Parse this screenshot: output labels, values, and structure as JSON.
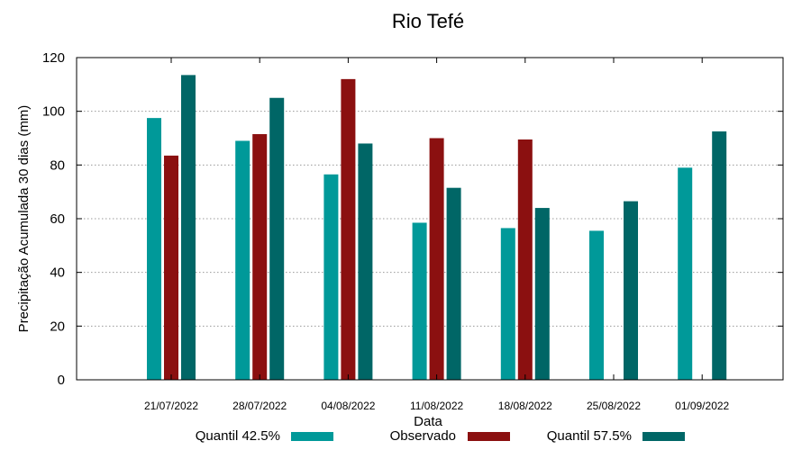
{
  "chart_data": {
    "type": "bar",
    "title": "Rio Tefé",
    "xlabel": "Data",
    "ylabel": "Precipitação Acumulada 30 dias (mm)",
    "ylim": [
      0,
      120
    ],
    "yticks": [
      0,
      20,
      40,
      60,
      80,
      100,
      120
    ],
    "grid": true,
    "legend_position": "bottom",
    "categories": [
      "21/07/2022",
      "28/07/2022",
      "04/08/2022",
      "11/08/2022",
      "18/08/2022",
      "25/08/2022",
      "01/09/2022"
    ],
    "series": [
      {
        "name": "Quantil 42.5%",
        "color": "#009999",
        "values": [
          97.5,
          89,
          76.5,
          58.5,
          56.5,
          55.5,
          79
        ]
      },
      {
        "name": "Observado",
        "color": "#8B1010",
        "values": [
          83.5,
          91.5,
          112,
          90,
          89.5,
          null,
          null
        ]
      },
      {
        "name": "Quantil 57.5%",
        "color": "#006666",
        "values": [
          113.5,
          105,
          88,
          71.5,
          64,
          66.5,
          92.5
        ]
      }
    ]
  }
}
